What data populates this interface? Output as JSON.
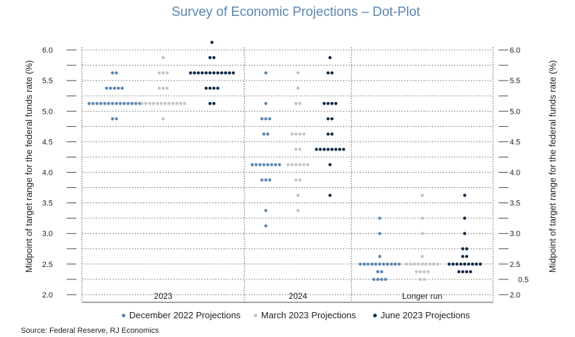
{
  "chart_data": {
    "type": "scatter",
    "title": "Survey of Economic Projections – Dot-Plot",
    "ylabel": "Midpoint of target range for the federal funds rate (%)",
    "ylim": [
      1.875,
      6.25
    ],
    "yticks": [
      "6.0",
      "5.5",
      "5.0",
      "4.5",
      "4.0",
      "3.5",
      "3.0",
      "2.5",
      "2.0"
    ],
    "right_extra_label": "0.5",
    "groups": [
      "2023",
      "2024",
      "Longer run"
    ],
    "series": [
      {
        "name": "December 2022 Projections",
        "color": "#5b86b0",
        "points": {
          "2023": [
            [
              5.625,
              2
            ],
            [
              5.375,
              5
            ],
            [
              5.125,
              14
            ],
            [
              4.875,
              2
            ]
          ],
          "2024": [
            [
              5.625,
              1
            ],
            [
              5.125,
              1
            ],
            [
              4.875,
              3
            ],
            [
              4.625,
              2
            ],
            [
              4.125,
              8
            ],
            [
              3.875,
              3
            ],
            [
              3.375,
              1
            ],
            [
              3.125,
              1
            ]
          ],
          "Longer run": [
            [
              3.25,
              1
            ],
            [
              3.0,
              1
            ],
            [
              2.625,
              1
            ],
            [
              2.5,
              11
            ],
            [
              2.375,
              2
            ],
            [
              2.25,
              4
            ]
          ]
        }
      },
      {
        "name": "March 2023 Projections",
        "color": "#c3c3c3",
        "points": {
          "2023": [
            [
              5.875,
              1
            ],
            [
              5.625,
              3
            ],
            [
              5.375,
              3
            ],
            [
              5.125,
              12
            ],
            [
              4.875,
              1
            ]
          ],
          "2024": [
            [
              5.625,
              1
            ],
            [
              5.375,
              1
            ],
            [
              5.125,
              2
            ],
            [
              4.625,
              4
            ],
            [
              4.375,
              2
            ],
            [
              4.125,
              6
            ],
            [
              3.875,
              2
            ],
            [
              3.625,
              1
            ],
            [
              3.375,
              1
            ]
          ],
          "Longer run": [
            [
              3.625,
              1
            ],
            [
              3.25,
              1
            ],
            [
              3.0,
              1
            ],
            [
              2.625,
              1
            ],
            [
              2.5,
              9
            ],
            [
              2.375,
              4
            ],
            [
              2.25,
              2
            ]
          ]
        }
      },
      {
        "name": "June 2023 Projections",
        "color": "#0d2a48",
        "points": {
          "2023": [
            [
              6.125,
              1
            ],
            [
              5.875,
              2
            ],
            [
              5.625,
              12
            ],
            [
              5.375,
              4
            ],
            [
              5.125,
              2
            ]
          ],
          "2024": [
            [
              5.875,
              1
            ],
            [
              5.625,
              2
            ],
            [
              5.125,
              4
            ],
            [
              4.875,
              2
            ],
            [
              4.625,
              2
            ],
            [
              4.375,
              8
            ],
            [
              4.125,
              1
            ],
            [
              3.625,
              1
            ]
          ],
          "Longer run": [
            [
              3.625,
              1
            ],
            [
              3.25,
              1
            ],
            [
              3.0,
              1
            ],
            [
              2.75,
              2
            ],
            [
              2.625,
              2
            ],
            [
              2.5,
              9
            ],
            [
              2.375,
              4
            ]
          ]
        }
      }
    ],
    "legend_position": "bottom"
  },
  "source": "Source: Federal Reserve, RJ Economics",
  "colors": {
    "title": "#5b86b0"
  }
}
